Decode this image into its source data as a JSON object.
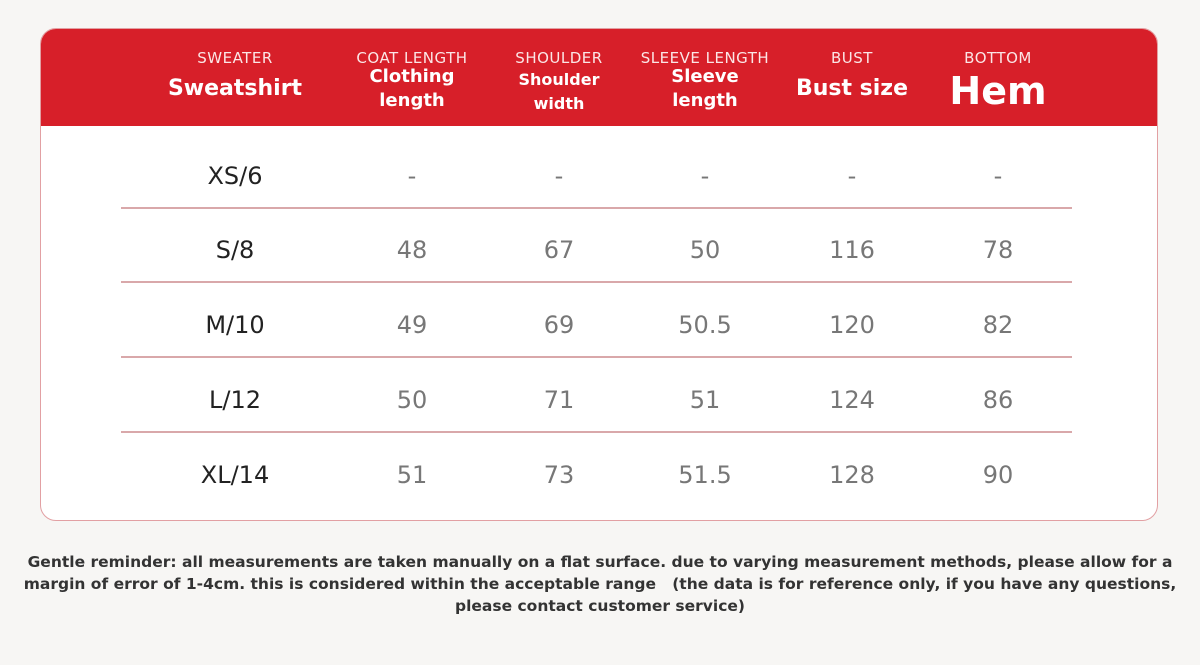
{
  "header": {
    "columns": [
      {
        "label": "SWEATER",
        "title": "Sweatshirt"
      },
      {
        "label": "COAT LENGTH",
        "title": "Clothing length"
      },
      {
        "label": "SHOULDER",
        "title": "Shoulder width"
      },
      {
        "label": "SLEEVE LENGTH",
        "title": "Sleeve length"
      },
      {
        "label": "BUST",
        "title": "Bust size"
      },
      {
        "label": "BOTTOM",
        "title": "Hem"
      }
    ]
  },
  "table": {
    "rows": [
      [
        "XS/6",
        "-",
        "-",
        "-",
        "-",
        "-"
      ],
      [
        "S/8",
        48,
        67,
        50,
        116,
        78
      ],
      [
        "M/10",
        49,
        69,
        50.5,
        120,
        82
      ],
      [
        "L/12",
        50,
        71,
        51,
        124,
        86
      ],
      [
        "XL/14",
        51,
        73,
        51.5,
        128,
        90
      ]
    ]
  },
  "note": "Gentle reminder: all measurements are taken manually on a flat surface. due to varying measurement methods, please allow for a margin of error of 1-4cm. this is considered within the acceptable range   (the data is for reference only, if you have any questions, please contact customer service)"
}
